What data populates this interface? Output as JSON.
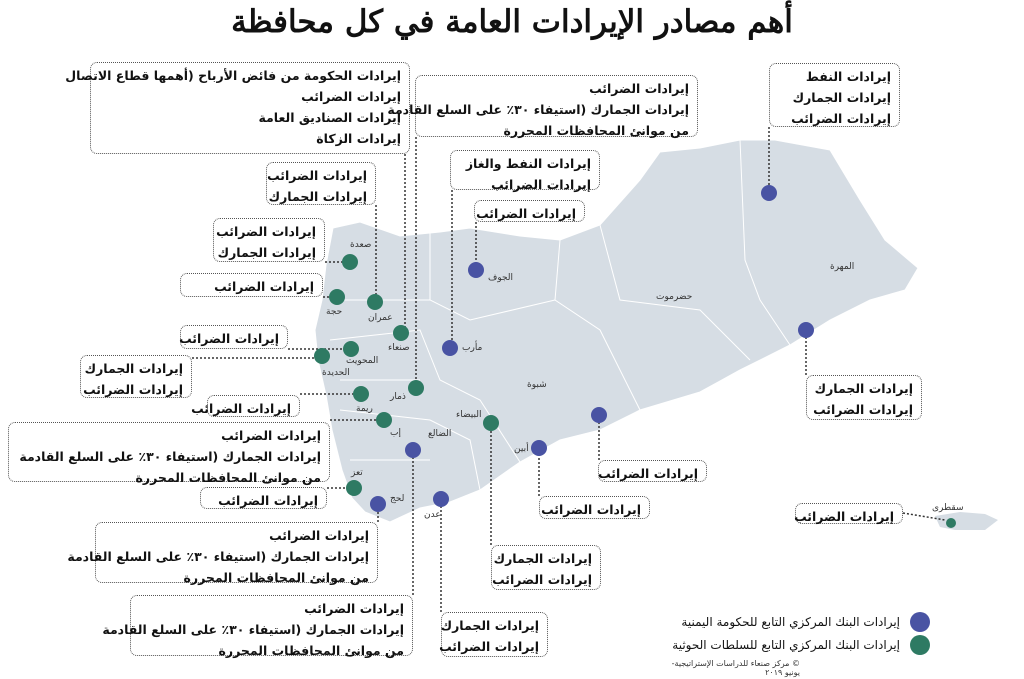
{
  "title": "أهم مصادر الإيرادات العامة في كل محافظة",
  "colors": {
    "government": "#4953a3",
    "houthi": "#2e7a63",
    "land": "#d6dde4"
  },
  "legend": [
    {
      "label": "إيرادات البنك المركزي التابع للحكومة اليمنية",
      "color": "#4953a3"
    },
    {
      "label": "إيرادات البنك المركزي التابع للسلطات الحوثية",
      "color": "#2e7a63"
    }
  ],
  "credit": "© مركز صنعاء للدراسات الإستراتيجية- يونيو ٢٠١٩",
  "governorates": [
    "صعدة",
    "حجة",
    "عمران",
    "صنعاء",
    "مأرب",
    "الجوف",
    "المحويت",
    "الحديدة",
    "ذمار",
    "ريمة",
    "إب",
    "الضالع",
    "البيضاء",
    "شبوة",
    "أبين",
    "تعز",
    "لحج",
    "عدن",
    "حضرموت",
    "المهرة",
    "سقطرى"
  ],
  "boxes": [
    {
      "governorate": "صنعاء",
      "bank": "houthi",
      "lines": [
        "إيرادات الحكومة من فائض الأرباح (أهمها قطاع الاتصال",
        "إيرادات الضرائب",
        "إيرادات الصناديق العامة",
        "إيرادات الزكاة"
      ]
    },
    {
      "governorate": "ذمار",
      "bank": "houthi",
      "lines": [
        "إيرادات الضرائب",
        "إيرادات الجمارك (استيفاء ٣٠٪ على السلع القادمة",
        "من موانئ المحافظات المحررة"
      ]
    },
    {
      "governorate": "حضرموت",
      "bank": "government",
      "lines": [
        "إيرادات النفط",
        "إيرادات الجمارك",
        "إيرادات الضرائب"
      ]
    },
    {
      "governorate": "مأرب",
      "bank": "government",
      "lines": [
        "إيرادات النفط والغاز",
        "إيرادات الضرائب"
      ]
    },
    {
      "governorate": "الجوف",
      "bank": "government",
      "lines": [
        "إيرادات الضرائب"
      ]
    },
    {
      "governorate": "عمران",
      "bank": "houthi",
      "lines": [
        "إيرادات الضرائب",
        "إيرادات الجمارك"
      ]
    },
    {
      "governorate": "صعدة",
      "bank": "houthi",
      "lines": [
        "إيرادات الضرائب",
        "إيرادات الجمارك"
      ]
    },
    {
      "governorate": "حجة",
      "bank": "houthi",
      "lines": [
        "إيرادات الضرائب"
      ]
    },
    {
      "governorate": "المحويت",
      "bank": "houthi",
      "lines": [
        "إيرادات الضرائب"
      ]
    },
    {
      "governorate": "الحديدة",
      "bank": "houthi",
      "lines": [
        "إيرادات الجمارك",
        "إيرادات الضرائب"
      ]
    },
    {
      "governorate": "ريمة",
      "bank": "houthi",
      "lines": [
        "إيرادات الضرائب"
      ]
    },
    {
      "governorate": "إب",
      "bank": "houthi",
      "lines": [
        "إيرادات الضرائب",
        "إيرادات الجمارك (استيفاء ٣٠٪ على السلع القادمة",
        "من موانئ المحافظات المحررة"
      ]
    },
    {
      "governorate": "تعز",
      "bank": "houthi",
      "lines": [
        "إيرادات الضرائب"
      ]
    },
    {
      "governorate": "لحج",
      "bank": "government",
      "lines": [
        "إيرادات الضرائب",
        "إيرادات الجمارك (استيفاء ٣٠٪ على السلع القادمة",
        "من موانئ المحافظات المحررة"
      ]
    },
    {
      "governorate": "الضالع",
      "bank": "government",
      "lines": [
        "إيرادات الضرائب",
        "إيرادات الجمارك (استيفاء ٣٠٪ على السلع القادمة",
        "من موانئ المحافظات المحررة"
      ]
    },
    {
      "governorate": "عدن",
      "bank": "government",
      "lines": [
        "إيرادات الجمارك",
        "إيرادات الضرائب"
      ]
    },
    {
      "governorate": "البيضاء",
      "bank": "houthi",
      "lines": [
        "إيرادات الجمارك",
        "إيرادات الضرائب"
      ]
    },
    {
      "governorate": "أبين",
      "bank": "government",
      "lines": [
        "إيرادات الضرائب"
      ]
    },
    {
      "governorate": "شبوة",
      "bank": "government",
      "lines": [
        "إيرادات الضرائب"
      ]
    },
    {
      "governorate": "المهرة",
      "bank": "government",
      "lines": [
        "إيرادات الجمارك",
        "إيرادات الضرائب"
      ]
    },
    {
      "governorate": "سقطرى",
      "bank": "houthi",
      "lines": [
        "إيرادات الضرائب"
      ]
    }
  ]
}
